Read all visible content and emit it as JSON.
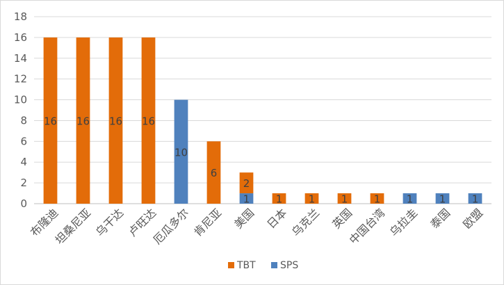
{
  "chart_data": {
    "type": "bar",
    "stacked": true,
    "categories": [
      "布隆迪",
      "坦桑尼亚",
      "乌干达",
      "卢旺达",
      "厄瓜多尔",
      "肯尼亚",
      "美国",
      "日本",
      "乌克兰",
      "英国",
      "中国台湾",
      "乌拉圭",
      "泰国",
      "欧盟"
    ],
    "series": [
      {
        "name": "SPS",
        "color": "#4f81bd",
        "values": [
          0,
          0,
          0,
          0,
          10,
          0,
          1,
          0,
          0,
          0,
          0,
          1,
          1,
          1
        ]
      },
      {
        "name": "TBT",
        "color": "#e36c09",
        "values": [
          16,
          16,
          16,
          16,
          0,
          6,
          2,
          1,
          1,
          1,
          1,
          0,
          0,
          0
        ]
      }
    ],
    "ylim": [
      0,
      18
    ],
    "yticks": [
      0,
      2,
      4,
      6,
      8,
      10,
      12,
      14,
      16,
      18
    ],
    "grid": true,
    "legend": {
      "position": "bottom",
      "order": [
        "TBT",
        "SPS"
      ]
    },
    "data_labels": true
  }
}
